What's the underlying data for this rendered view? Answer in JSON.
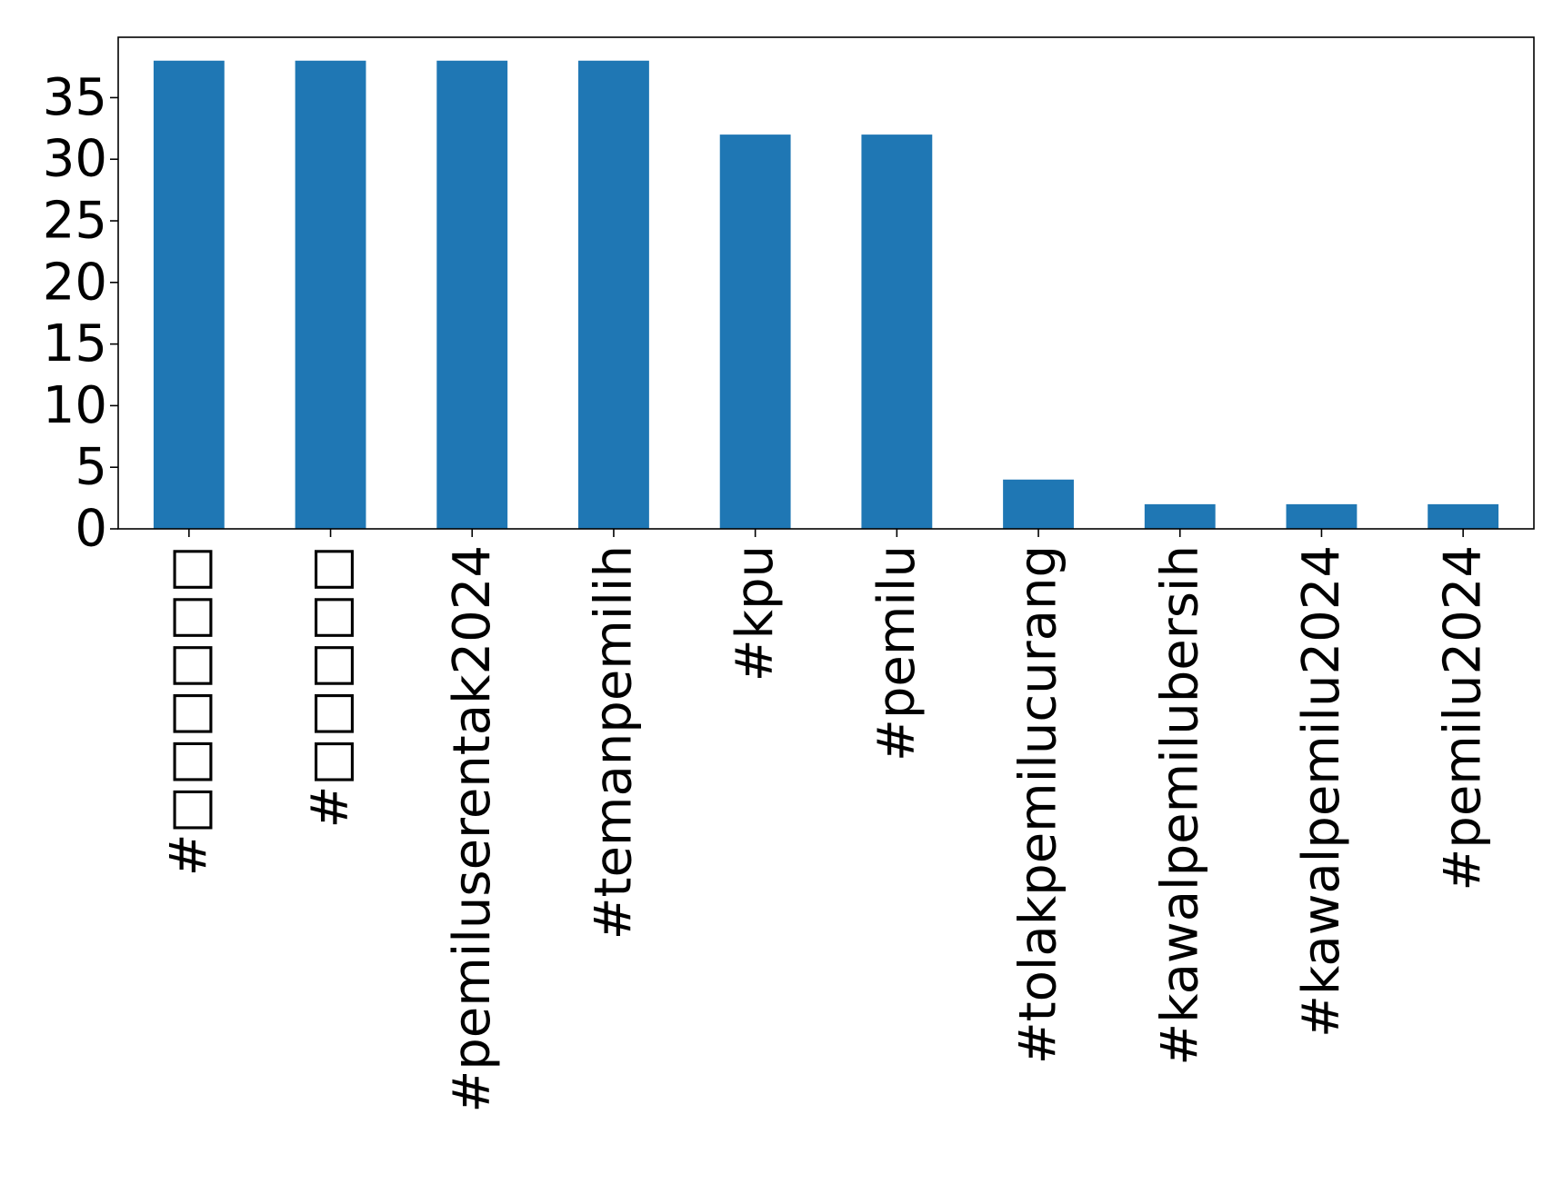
{
  "chart_data": {
    "type": "bar",
    "title": "",
    "xlabel": "",
    "ylabel": "",
    "categories": [
      "#□□□□□□",
      "#□□□□□",
      "#pemiluserentak2024",
      "#temanpemilih",
      "#kpu",
      "#pemilu",
      "#tolakpemilucurang",
      "#kawalpemilubersih",
      "#kawalpemilu2024",
      "#pemilu2024"
    ],
    "values": [
      38,
      38,
      38,
      38,
      32,
      32,
      4,
      2,
      2,
      2
    ],
    "ylim": [
      0,
      39.9
    ],
    "yticks": [
      0,
      5,
      10,
      15,
      20,
      25,
      30,
      35
    ],
    "bar_color": "#1f77b4",
    "grid": false,
    "legend": "none"
  }
}
